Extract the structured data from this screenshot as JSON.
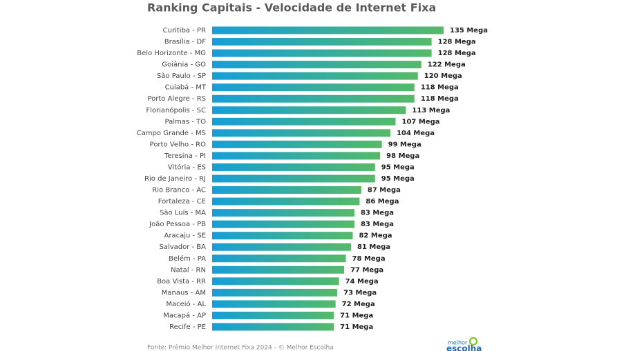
{
  "chart_data": {
    "type": "bar",
    "orientation": "horizontal",
    "title": "Ranking Capitais - Velocidade de Internet Fixa",
    "source": "Fonte: Prêmio Melhor Internet Fixa 2024 - © Melhor Escolha",
    "logo": [
      "melhor",
      "escolha"
    ],
    "gradient": [
      "#169ed9",
      "#55ba68"
    ],
    "categories": [
      "Curitiba - PR",
      "Brasília - DF",
      "Belo Horizonte - MG",
      "Goiânia - GO",
      "São Paulo - SP",
      "Cuiabá - MT",
      "Porto Alegre - RS",
      "Florianópolis - SC",
      "Palmas - TO",
      "Campo Grande - MS",
      "Porto Velho - RO",
      "Teresina - PI",
      "Vitória - ES",
      "Rio de Janeiro - RJ",
      "Rio Branco - AC",
      "Fortaleza - CE",
      "São Luís - MA",
      "João Pessoa - PB",
      "Aracaju - SE",
      "Salvador - BA",
      "Belém - PA",
      "Natal - RN",
      "Boa Vista - RR",
      "Manaus - AM",
      "Maceió - AL",
      "Macapá - AP",
      "Recife - PE"
    ],
    "values": [
      135,
      128,
      128,
      122,
      120,
      118,
      118,
      113,
      107,
      104,
      99,
      98,
      95,
      95,
      87,
      86,
      83,
      83,
      82,
      81,
      78,
      77,
      74,
      73,
      72,
      71,
      71
    ],
    "value_labels": [
      "135 Mega",
      "128 Mega",
      "128 Mega",
      "122 Mega",
      "120 Mega",
      "118 Mega",
      "118 Mega",
      "113 Mega",
      "107 Mega",
      "104 Mega",
      "99 Mega",
      "98 Mega",
      "95 Mega",
      "95 Mega",
      "87 Mega",
      "86 Mega",
      "83 Mega",
      "83 Mega",
      "82 Mega",
      "81 Mega",
      "78 Mega",
      "77 Mega",
      "74 Mega",
      "73 Mega",
      "72 Mega",
      "71 Mega",
      "71 Mega"
    ]
  }
}
